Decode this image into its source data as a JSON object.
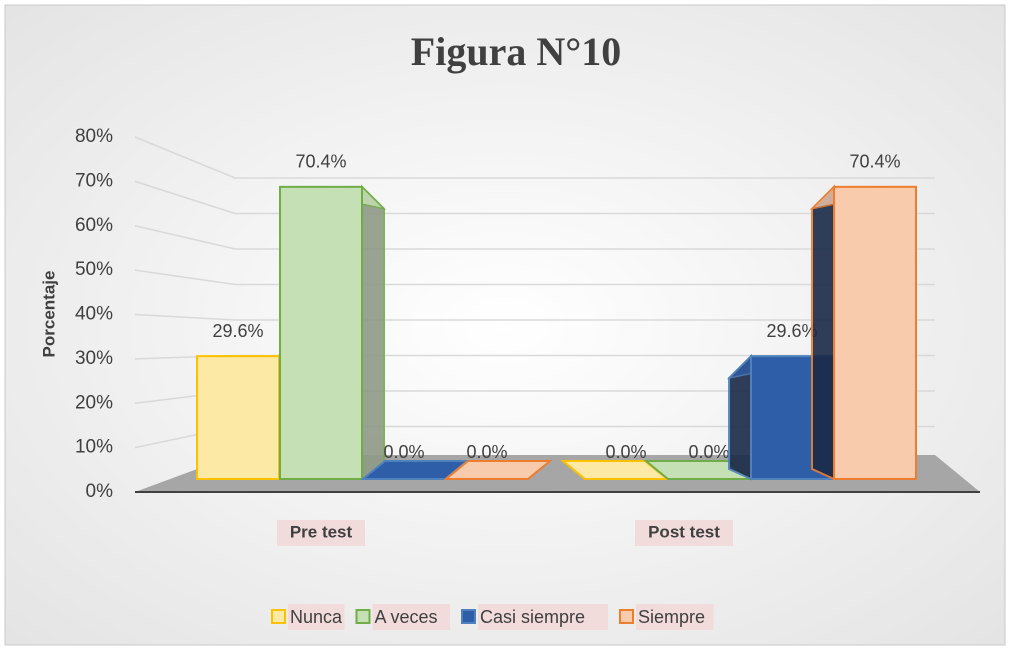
{
  "chart_data": {
    "type": "bar3d",
    "title": "Figura N°10",
    "y_axis_label": "Porcentaje",
    "categories": [
      "Pre test",
      "Post test"
    ],
    "series": [
      {
        "name": "Nunca",
        "color": "#ffc000",
        "fill": "#fde9a6",
        "values": [
          29.6,
          0
        ],
        "value_labels": [
          "29.6%",
          "0.0%"
        ]
      },
      {
        "name": "A veces",
        "color": "#70ad47",
        "fill": "#c5e0b4",
        "values": [
          70.4,
          0
        ],
        "value_labels": [
          "70.4%",
          "0.0%"
        ]
      },
      {
        "name": "Casi siempre",
        "color": "#4f81bd",
        "fill": "#2f5ea8",
        "values": [
          0,
          29.6
        ],
        "value_labels": [
          "0.0%",
          "29.6%"
        ]
      },
      {
        "name": "Siempre",
        "color": "#ed7d31",
        "fill": "#f8cbad",
        "values": [
          0,
          70.4
        ],
        "value_labels": [
          "0.0%",
          "70.4%"
        ]
      }
    ],
    "ylim": [
      0,
      80
    ],
    "yticks": [
      {
        "value": 0,
        "label": "0%"
      },
      {
        "value": 10,
        "label": "10%"
      },
      {
        "value": 20,
        "label": "20%"
      },
      {
        "value": 30,
        "label": "30%"
      },
      {
        "value": 40,
        "label": "40%"
      },
      {
        "value": 50,
        "label": "50%"
      },
      {
        "value": 60,
        "label": "60%"
      },
      {
        "value": 70,
        "label": "70%"
      },
      {
        "value": 80,
        "label": "80%"
      }
    ],
    "grid": true,
    "legend": "bottom"
  }
}
